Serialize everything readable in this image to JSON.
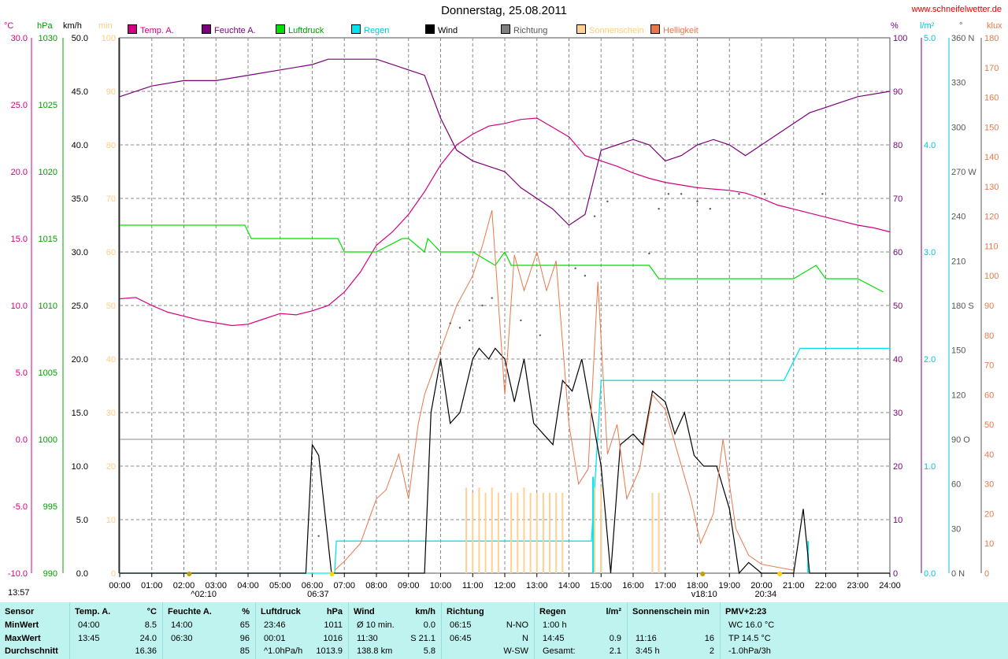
{
  "title": "Donnerstag, 25.08.2011",
  "site": "www.schneifelwetter.de",
  "legend": [
    {
      "name": "Temp. A.",
      "color": "#d4007f"
    },
    {
      "name": "Feuchte A.",
      "color": "#7a007a"
    },
    {
      "name": "Luftdruck",
      "color": "#00e000"
    },
    {
      "name": "Regen",
      "color": "#00e5ee"
    },
    {
      "name": "Wind",
      "color": "#000000"
    },
    {
      "name": "Richtung",
      "color": "#808080"
    },
    {
      "name": "Sonnenschein",
      "color": "#ffd090"
    },
    {
      "name": "Helligkeit",
      "color": "#e8784a"
    }
  ],
  "axes": {
    "temp": {
      "unit": "°C",
      "color": "#d4007f",
      "ticks": [
        "30.0",
        "25.0",
        "20.0",
        "15.0",
        "10.0",
        "5.0",
        "0.0",
        "-5.0",
        "-10.0"
      ]
    },
    "pressure": {
      "unit": "hPa",
      "color": "#00a000",
      "ticks": [
        "1030",
        "1025",
        "1020",
        "1015",
        "1010",
        "1005",
        "1000",
        "995",
        "990"
      ]
    },
    "wind": {
      "unit": "km/h",
      "color": "#000000",
      "ticks": [
        "50.0",
        "45.0",
        "40.0",
        "35.0",
        "30.0",
        "25.0",
        "20.0",
        "15.0",
        "10.0",
        "5.0",
        "0.0"
      ]
    },
    "sun": {
      "unit": "min",
      "color": "#ffcc80",
      "ticks": [
        "100",
        "90",
        "80",
        "70",
        "60",
        "50",
        "40",
        "30",
        "20",
        "10",
        "0"
      ]
    },
    "humidity": {
      "unit": "%",
      "color": "#7a007a",
      "ticks": [
        "100",
        "90",
        "80",
        "70",
        "60",
        "50",
        "40",
        "30",
        "20",
        "10",
        "0"
      ]
    },
    "rain": {
      "unit": "l/m²",
      "color": "#00c8d8",
      "ticks": [
        "5.0",
        "4.0",
        "3.0",
        "2.0",
        "1.0",
        "0.0"
      ]
    },
    "direction": {
      "unit": "°",
      "color": "#555555",
      "ticks": [
        "360 N",
        "330",
        "300",
        "270 W",
        "240",
        "210",
        "180 S",
        "150",
        "120",
        "90 O",
        "60",
        "30",
        "0 N"
      ]
    },
    "light": {
      "unit": "klux",
      "color": "#e8784a",
      "ticks": [
        "180",
        "170",
        "160",
        "150",
        "140",
        "130",
        "120",
        "110",
        "100",
        "90",
        "80",
        "70",
        "60",
        "50",
        "40",
        "30",
        "20",
        "10",
        "0"
      ]
    }
  },
  "time_labels": [
    "00:00",
    "01:00",
    "02:00",
    "03:00",
    "04:00",
    "05:00",
    "06:00",
    "07:00",
    "08:00",
    "09:00",
    "10:00",
    "11:00",
    "12:00",
    "13:00",
    "14:00",
    "15:00",
    "16:00",
    "17:00",
    "18:00",
    "19:00",
    "20:00",
    "21:00",
    "22:00",
    "23:00",
    "24:00"
  ],
  "events": {
    "sunrise": "06:37",
    "sunset": "20:34",
    "moonrise": "02:10",
    "moonset": "18:10",
    "now": "13:57"
  },
  "chart_data": {
    "type": "line",
    "x_unit": "hours",
    "xlim": [
      0,
      24
    ],
    "series": [
      {
        "name": "Temp. A.",
        "unit": "°C",
        "ylim": [
          -10,
          30
        ],
        "x": [
          0,
          0.5,
          1,
          1.5,
          2,
          2.5,
          3,
          3.5,
          4,
          4.5,
          5,
          5.5,
          6,
          6.5,
          7,
          7.5,
          8,
          8.5,
          9,
          9.5,
          10,
          10.5,
          11,
          11.5,
          12,
          12.5,
          13,
          13.5,
          14,
          14.5,
          15,
          15.5,
          16,
          16.5,
          17,
          17.5,
          18,
          18.5,
          19,
          19.5,
          20,
          20.5,
          21,
          21.5,
          22,
          22.5,
          23,
          23.5,
          24
        ],
        "y": [
          10.5,
          10.6,
          10.0,
          9.5,
          9.2,
          8.9,
          8.7,
          8.5,
          8.6,
          9.0,
          9.4,
          9.3,
          9.6,
          10.0,
          11.0,
          12.5,
          14.5,
          15.5,
          16.8,
          18.5,
          20.5,
          22.0,
          22.8,
          23.4,
          23.6,
          23.9,
          24.0,
          23.3,
          22.6,
          21.2,
          20.8,
          20.4,
          19.9,
          19.5,
          19.2,
          19.0,
          18.8,
          18.7,
          18.6,
          18.4,
          18.0,
          17.5,
          17.2,
          16.9,
          16.6,
          16.3,
          16.0,
          15.8,
          15.5
        ]
      },
      {
        "name": "Feuchte A.",
        "unit": "%",
        "ylim": [
          0,
          100
        ],
        "x": [
          0,
          1,
          2,
          3,
          4,
          5,
          6,
          6.5,
          7,
          8,
          9,
          9.5,
          10,
          10.5,
          11,
          11.5,
          12,
          12.5,
          13,
          13.5,
          14,
          14.5,
          15,
          15.5,
          16,
          16.5,
          17,
          17.5,
          18,
          18.5,
          19,
          19.5,
          20,
          20.5,
          21,
          21.5,
          22,
          22.5,
          23,
          24
        ],
        "y": [
          89,
          91,
          92,
          92,
          93,
          94,
          95,
          96,
          96,
          96,
          94,
          93,
          85,
          79,
          77,
          76,
          75,
          72,
          70,
          68,
          65,
          67,
          79,
          80,
          81,
          80,
          77,
          78,
          80,
          81,
          80,
          78,
          80,
          82,
          84,
          86,
          87,
          88,
          89,
          90
        ]
      },
      {
        "name": "Luftdruck",
        "unit": "hPa",
        "ylim": [
          990,
          1030
        ],
        "x": [
          0,
          1,
          2,
          3,
          3.9,
          4.1,
          5,
          6,
          6.8,
          7,
          8,
          8.8,
          9,
          9.5,
          9.6,
          10,
          11,
          11.7,
          12,
          12.2,
          13,
          14,
          15,
          16,
          16.5,
          16.8,
          17,
          18,
          19,
          20,
          21,
          21.7,
          22,
          23,
          23.8
        ],
        "y": [
          1016,
          1016,
          1016,
          1016,
          1016,
          1015,
          1015,
          1015,
          1015,
          1014,
          1014,
          1015,
          1015,
          1014,
          1015,
          1014,
          1014,
          1013,
          1014,
          1013,
          1013,
          1013,
          1013,
          1013,
          1013,
          1012,
          1012,
          1012,
          1012,
          1012,
          1012,
          1013,
          1012,
          1012,
          1011
        ]
      },
      {
        "name": "Regen",
        "unit": "l/m²",
        "ylim": [
          0,
          5
        ],
        "x": [
          0,
          6.7,
          6.75,
          14.7,
          15,
          20.7,
          21.2,
          24
        ],
        "y": [
          0,
          0,
          0.3,
          0.3,
          1.8,
          1.8,
          2.1,
          2.1
        ]
      },
      {
        "name": "Wind",
        "unit": "km/h",
        "ylim": [
          0,
          50
        ],
        "x": [
          0,
          5.8,
          6.0,
          6.2,
          6.6,
          9.5,
          9.7,
          10.0,
          10.3,
          10.6,
          11.0,
          11.2,
          11.5,
          11.7,
          12.0,
          12.3,
          12.6,
          12.9,
          13.2,
          13.5,
          13.8,
          14.1,
          14.4,
          14.7,
          15.0,
          15.3,
          15.6,
          16.0,
          16.3,
          16.6,
          17.0,
          17.3,
          17.6,
          17.9,
          18.2,
          18.6,
          19.0,
          19.3,
          19.6,
          20.0,
          21.0,
          21.3,
          21.5,
          24
        ],
        "y": [
          0,
          0,
          12,
          11,
          0,
          0,
          15,
          20,
          14,
          15,
          20,
          21,
          20,
          21,
          20,
          16,
          20,
          14,
          13,
          12,
          18,
          17,
          20,
          15,
          10,
          0,
          12,
          13,
          12,
          17,
          16,
          13,
          15,
          11,
          10,
          10,
          6,
          0,
          1,
          0,
          0,
          6,
          0,
          0
        ]
      },
      {
        "name": "Helligkeit",
        "unit": "klux",
        "ylim": [
          0,
          180
        ],
        "x": [
          6.7,
          7,
          7.5,
          8,
          8.3,
          8.7,
          9,
          9.3,
          9.5,
          10,
          10.5,
          11,
          11.3,
          11.6,
          12,
          12.3,
          12.6,
          13,
          13.3,
          13.6,
          14,
          14.3,
          14.6,
          14.9,
          15.2,
          15.5,
          15.8,
          16.2,
          16.6,
          17,
          17.4,
          17.8,
          18.1,
          18.5,
          18.8,
          19.2,
          19.6,
          20,
          21
        ],
        "y": [
          1,
          4,
          10,
          25,
          28,
          40,
          25,
          50,
          60,
          75,
          90,
          100,
          110,
          122,
          60,
          107,
          95,
          108,
          95,
          105,
          50,
          30,
          35,
          98,
          40,
          50,
          25,
          35,
          60,
          55,
          40,
          25,
          10,
          20,
          45,
          15,
          6,
          3,
          1
        ]
      },
      {
        "name": "Sonnenschein",
        "unit": "min",
        "ylim": [
          0,
          100
        ],
        "x": [
          10.8,
          11.0,
          11.2,
          11.4,
          11.6,
          11.8,
          12.2,
          12.4,
          12.6,
          12.8,
          13.0,
          13.2,
          13.4,
          13.6,
          13.8,
          14.8,
          15.0,
          16.6,
          16.8
        ],
        "y": [
          16,
          15,
          16,
          15,
          16,
          15,
          15,
          15,
          16,
          15,
          15,
          15,
          15,
          15,
          15,
          16,
          16,
          15,
          15
        ]
      },
      {
        "name": "Richtung",
        "unit": "°",
        "ylim": [
          0,
          360
        ],
        "x": [
          6.2,
          10.3,
          10.6,
          10.9,
          11.3,
          11.6,
          12.5,
          13.1,
          14.2,
          14.5,
          14.8,
          15.2,
          16.5,
          16.8,
          17.1,
          17.5,
          18.0,
          18.4,
          19.3,
          20.1,
          21.9
        ],
        "y": [
          25,
          168,
          165,
          170,
          180,
          185,
          170,
          160,
          205,
          200,
          240,
          250,
          215,
          245,
          255,
          255,
          250,
          245,
          255,
          255,
          255
        ]
      }
    ]
  },
  "footer": {
    "columns": [
      {
        "title": "Sensor",
        "rows": [
          "MinWert",
          "MaxWert",
          "Durchschnitt"
        ]
      },
      {
        "title": "Temp. A.",
        "unit": "°C",
        "rows": [
          [
            "04:00",
            "8.5"
          ],
          [
            "13:45",
            "24.0"
          ],
          [
            "",
            "16.36"
          ]
        ]
      },
      {
        "title": "Feuchte A.",
        "unit": "%",
        "rows": [
          [
            "14:00",
            "65"
          ],
          [
            "06:30",
            "96"
          ],
          [
            "",
            "85"
          ]
        ]
      },
      {
        "title": "Luftdruck",
        "unit": "hPa",
        "rows": [
          [
            "23:46",
            "1011"
          ],
          [
            "00:01",
            "1016"
          ],
          [
            "^1.0hPa/h",
            "1013.9"
          ]
        ]
      },
      {
        "title": "Wind",
        "unit": "km/h",
        "rows": [
          [
            "Ø 10 min.",
            "0.0"
          ],
          [
            "11:30",
            "S 21.1"
          ],
          [
            "138.8 km",
            "5.8"
          ]
        ]
      },
      {
        "title": "Richtung",
        "unit": "",
        "rows": [
          [
            "06:15",
            "N-NO"
          ],
          [
            "06:45",
            "N"
          ],
          [
            "",
            "W-SW"
          ]
        ]
      },
      {
        "title": "Regen",
        "unit": "l/m²",
        "rows": [
          [
            "1:00 h",
            ""
          ],
          [
            "14:45",
            "0.9"
          ],
          [
            "Gesamt:",
            "2.1"
          ]
        ]
      },
      {
        "title": "Sonnenschein min",
        "unit": "",
        "rows": [
          [
            "",
            ""
          ],
          [
            "11:16",
            "16"
          ],
          [
            "3:45 h",
            "2"
          ]
        ]
      },
      {
        "title": "PMV+2:23",
        "unit": "",
        "rows": [
          [
            "WC 16.0 °C",
            ""
          ],
          [
            "TP 14.5 °C",
            ""
          ],
          [
            "-1.0hPa/3h",
            ""
          ]
        ]
      }
    ]
  }
}
